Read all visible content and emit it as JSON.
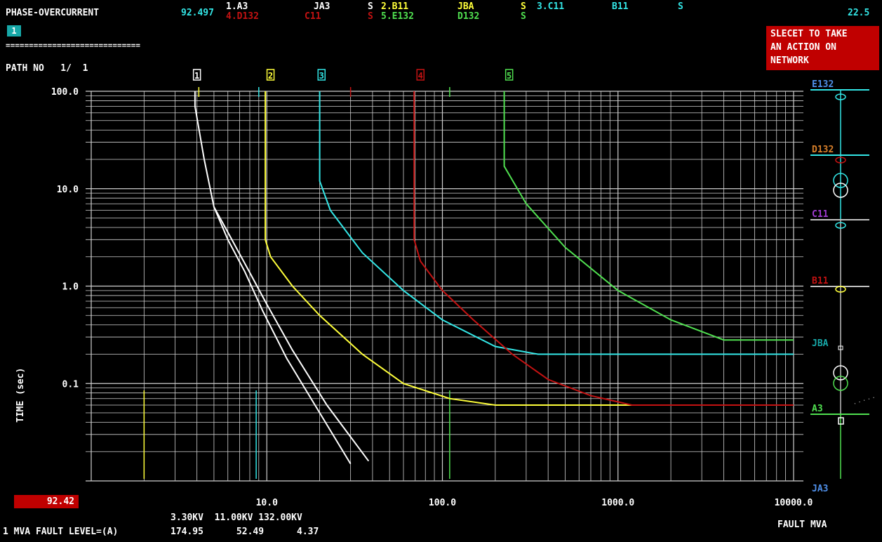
{
  "header": {
    "title": "PHASE-OVERCURRENT",
    "value": "92.497",
    "top_right": "22.5",
    "page_badge": "1",
    "separator": "=============================",
    "path_label": "PATH NO   1/  1"
  },
  "legend_rows": [
    [
      {
        "text": "1.A3",
        "color": "#ffffff"
      },
      {
        "text": "JA3",
        "color": "#ffffff"
      },
      {
        "text": "S",
        "color": "#ffffff"
      },
      {
        "text": "2.B11",
        "color": "#ffff3a"
      },
      {
        "text": "JBA",
        "color": "#ffff3a"
      },
      {
        "text": "S",
        "color": "#ffff3a"
      },
      {
        "text": "3.C11",
        "color": "#33e6e6"
      },
      {
        "text": "B11",
        "color": "#33e6e6"
      },
      {
        "text": "S",
        "color": "#33e6e6"
      }
    ],
    [
      {
        "text": "4.D132",
        "color": "#c41212"
      },
      {
        "text": "C11",
        "color": "#c41212"
      },
      {
        "text": "S",
        "color": "#c41212"
      },
      {
        "text": "5.E132",
        "color": "#50e050"
      },
      {
        "text": "D132",
        "color": "#50e050"
      },
      {
        "text": "S",
        "color": "#50e050"
      }
    ]
  ],
  "action_button": {
    "line1": "SLECET TO TAKE",
    "line2": "AN ACTION ON",
    "line3": "NETWORK"
  },
  "value_box": "92.42",
  "bottom": {
    "voltages": "3.30KV  11.00KV 132.00KV",
    "fault_label": "1 MVA FAULT LEVEL=(A)",
    "fault_values": "174.95      52.49      4.37",
    "xaxis_title": "FAULT MVA"
  },
  "chart_data": {
    "type": "line",
    "xscale": "log",
    "yscale": "log",
    "xlim": [
      1.0,
      10000
    ],
    "ylim": [
      0.01,
      100
    ],
    "xlabel": "FAULT MVA",
    "ylabel": "TIME (sec)",
    "x_ticks": [
      "10.0",
      "100.0",
      "1000.0",
      "10000.0"
    ],
    "y_ticks": [
      "100.0",
      "10.0",
      "1.0",
      "0.1"
    ],
    "grid": true,
    "series": [
      {
        "name": "1",
        "color": "#ffffff",
        "x": [
          3.9,
          3.9,
          4.4,
          5.0,
          6.0,
          7.5,
          9.5,
          13,
          20,
          30
        ],
        "y": [
          100,
          70,
          20,
          6.5,
          3.0,
          1.4,
          0.55,
          0.18,
          0.05,
          0.015
        ]
      },
      {
        "name": "1",
        "color": "#ffffff",
        "x": [
          5.0,
          6.2,
          7.8,
          10,
          14,
          22,
          38
        ],
        "y": [
          6.5,
          3.2,
          1.5,
          0.65,
          0.22,
          0.06,
          0.016
        ]
      },
      {
        "name": "2",
        "color": "#ffff3a",
        "x": [
          9.8,
          9.8,
          10.5,
          14,
          20,
          35,
          60,
          110,
          200,
          1200
        ],
        "y": [
          100,
          3.0,
          2.0,
          1.0,
          0.5,
          0.2,
          0.1,
          0.07,
          0.06,
          0.06
        ]
      },
      {
        "name": "3",
        "color": "#33e6e6",
        "x": [
          20,
          20,
          23,
          35,
          60,
          100,
          200,
          350,
          10000
        ],
        "y": [
          100,
          12,
          6.0,
          2.2,
          0.9,
          0.45,
          0.24,
          0.2,
          0.2
        ]
      },
      {
        "name": "4",
        "color": "#c41212",
        "x": [
          69,
          69,
          75,
          100,
          150,
          250,
          400,
          700,
          1200,
          10000
        ],
        "y": [
          100,
          3.0,
          1.8,
          0.9,
          0.45,
          0.2,
          0.11,
          0.075,
          0.06,
          0.06
        ]
      },
      {
        "name": "5",
        "color": "#50e050",
        "x": [
          225,
          225,
          300,
          500,
          1000,
          2000,
          4000,
          10000
        ],
        "y": [
          100,
          17,
          7.0,
          2.5,
          0.9,
          0.45,
          0.28,
          0.28
        ]
      }
    ],
    "curve_labels": [
      {
        "text": "1",
        "x": 4.0,
        "color": "#ffffff"
      },
      {
        "text": "2",
        "x": 10.5,
        "color": "#ffff3a"
      },
      {
        "text": "3",
        "x": 20.5,
        "color": "#33e6e6"
      },
      {
        "text": "4",
        "x": 75,
        "color": "#c41212"
      },
      {
        "text": "5",
        "x": 240,
        "color": "#50e050"
      }
    ],
    "fault_markers": [
      {
        "x": 2.0,
        "color": "#ffff3a"
      },
      {
        "x": 8.7,
        "color": "#33e6e6"
      },
      {
        "x": 110,
        "color": "#50e050"
      }
    ],
    "top_markers": [
      {
        "x": 4.1,
        "color": "#ffff3a"
      },
      {
        "x": 9.0,
        "color": "#33e6e6"
      },
      {
        "x": 30,
        "color": "#c41212"
      },
      {
        "x": 110,
        "color": "#50e050"
      }
    ]
  },
  "single_line": {
    "buses": [
      {
        "name": "E132",
        "color": "#4f8fe8",
        "line_color": "#33e6e6"
      },
      {
        "name": "D132",
        "color": "#d77f2a",
        "line_color": "#33e6e6"
      },
      {
        "name": "C11",
        "color": "#a23cd2",
        "line_color": "#c0c0c0"
      },
      {
        "name": "B11",
        "color": "#c41212",
        "line_color": "#c0c0c0"
      },
      {
        "name": "JBA",
        "color": "#17a8a8",
        "line_color": ""
      },
      {
        "name": "A3",
        "color": "#50e050",
        "line_color": "#50e050"
      },
      {
        "name": "JA3",
        "color": "#4f8fe8",
        "line_color": ""
      }
    ]
  }
}
